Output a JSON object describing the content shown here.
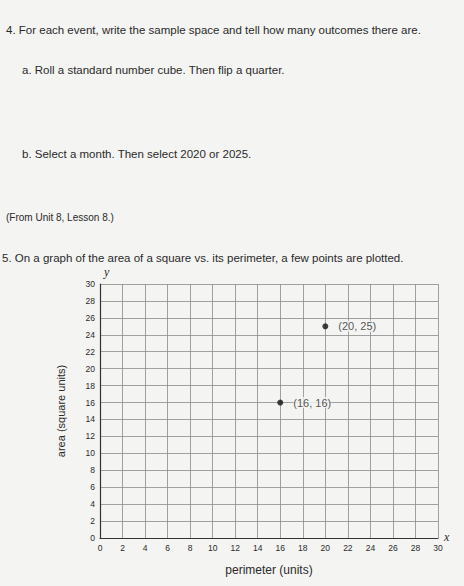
{
  "document": {
    "problem4": {
      "prompt": "4. For each event, write the sample space and tell how many outcomes there are.",
      "part_a": "a. Roll a standard number cube. Then flip a quarter.",
      "part_b": "b. Select a month. Then select 2020 or 2025.",
      "source": "(From Unit 8, Lesson 8.)"
    },
    "problem5": {
      "prompt": "5. On a graph of the area of a square vs. its perimeter, a few points are plotted."
    }
  },
  "chart_data": {
    "type": "scatter",
    "xlabel": "perimeter (units)",
    "ylabel": "area (square units)",
    "x_axis_letter": "x",
    "y_axis_letter": "y",
    "x": [
      16,
      20
    ],
    "values": [
      16,
      25
    ],
    "value_labels": [
      "(16, 16)",
      "(20, 25)"
    ],
    "data_labels": true,
    "color": "#111111",
    "marker": "circle",
    "xlim": [
      0,
      30
    ],
    "ylim": [
      0,
      30
    ],
    "xticks": [
      0,
      2,
      4,
      6,
      8,
      10,
      12,
      14,
      16,
      18,
      20,
      22,
      24,
      26,
      28,
      30
    ],
    "yticks": [
      0,
      2,
      4,
      6,
      8,
      10,
      12,
      14,
      16,
      18,
      20,
      22,
      24,
      26,
      28,
      30
    ],
    "grid": true
  }
}
